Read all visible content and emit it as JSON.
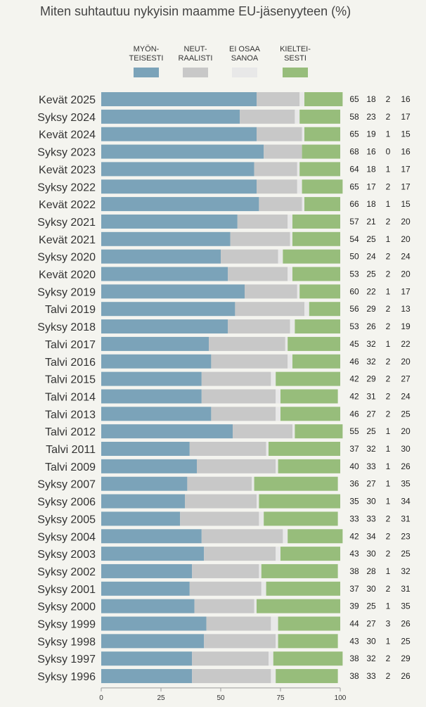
{
  "chart_data": {
    "type": "bar",
    "stacked": true,
    "orientation": "horizontal",
    "title": "Miten suhtautuu nykyisin maamme EU-jäsenyyteen (%)",
    "xlim": [
      0,
      100
    ],
    "xticks": [
      0,
      25,
      50,
      75,
      100
    ],
    "legend_position": "top",
    "series": [
      {
        "name": "MYÖN-\nTEISESTI",
        "color": "#7ba3b9"
      },
      {
        "name": "NEUT-\nRAALISTI",
        "color": "#c8c8c8"
      },
      {
        "name": "EI OSAA\nSANOA",
        "color": "#e8e8e8"
      },
      {
        "name": "KIELTEI-\nSESTI",
        "color": "#97bd7b"
      }
    ],
    "categories": [
      "Kevät 2025",
      "Syksy 2024",
      "Kevät 2024",
      "Syksy 2023",
      "Kevät 2023",
      "Syksy 2022",
      "Kevät 2022",
      "Syksy 2021",
      "Kevät 2021",
      "Syksy 2020",
      "Kevät 2020",
      "Syksy 2019",
      "Talvi 2019",
      "Syksy 2018",
      "Talvi 2017",
      "Talvi 2016",
      "Talvi 2015",
      "Talvi 2014",
      "Talvi 2013",
      "Talvi 2012",
      "Talvi 2011",
      "Talvi 2009",
      "Syksy 2007",
      "Syksy 2006",
      "Syksy 2005",
      "Syksy 2004",
      "Syksy 2003",
      "Syksy 2002",
      "Syksy 2001",
      "Syksy 2000",
      "Syksy 1999",
      "Syksy 1998",
      "Syksy 1997",
      "Syksy 1996"
    ],
    "values": [
      [
        65,
        18,
        2,
        16
      ],
      [
        58,
        23,
        2,
        17
      ],
      [
        65,
        19,
        1,
        15
      ],
      [
        68,
        16,
        0,
        16
      ],
      [
        64,
        18,
        1,
        17
      ],
      [
        65,
        17,
        2,
        17
      ],
      [
        66,
        18,
        1,
        15
      ],
      [
        57,
        21,
        2,
        20
      ],
      [
        54,
        25,
        1,
        20
      ],
      [
        50,
        24,
        2,
        24
      ],
      [
        53,
        25,
        2,
        20
      ],
      [
        60,
        22,
        1,
        17
      ],
      [
        56,
        29,
        2,
        13
      ],
      [
        53,
        26,
        2,
        19
      ],
      [
        45,
        32,
        1,
        22
      ],
      [
        46,
        32,
        2,
        20
      ],
      [
        42,
        29,
        2,
        27
      ],
      [
        42,
        31,
        2,
        24
      ],
      [
        46,
        27,
        2,
        25
      ],
      [
        55,
        25,
        1,
        20
      ],
      [
        37,
        32,
        1,
        30
      ],
      [
        40,
        33,
        1,
        26
      ],
      [
        36,
        27,
        1,
        35
      ],
      [
        35,
        30,
        1,
        34
      ],
      [
        33,
        33,
        2,
        31
      ],
      [
        42,
        34,
        2,
        23
      ],
      [
        43,
        30,
        2,
        25
      ],
      [
        38,
        28,
        1,
        32
      ],
      [
        37,
        30,
        2,
        31
      ],
      [
        39,
        25,
        1,
        35
      ],
      [
        44,
        27,
        3,
        26
      ],
      [
        43,
        30,
        1,
        25
      ],
      [
        38,
        32,
        2,
        29
      ],
      [
        38,
        33,
        2,
        26
      ]
    ]
  }
}
